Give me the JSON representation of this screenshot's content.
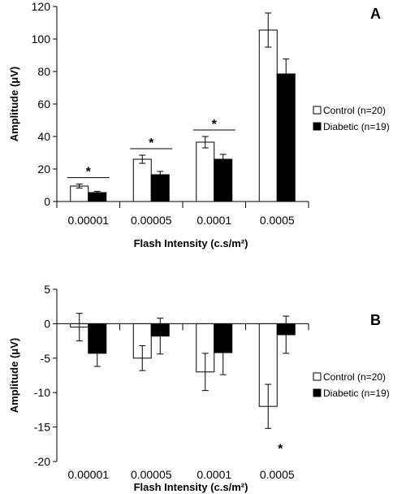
{
  "chart_data": [
    {
      "type": "bar",
      "panel_label": "A",
      "categories": [
        "0.00001",
        "0.00005",
        "0.0001",
        "0.0005"
      ],
      "series": [
        {
          "name": "Control (n=20)",
          "values": [
            9.5,
            26,
            36.5,
            105.5
          ],
          "errors": [
            1.2,
            2.5,
            3.5,
            10.5
          ],
          "color": "#ffffff"
        },
        {
          "name": "Diabetic (n=19)",
          "values": [
            5.5,
            16.5,
            26,
            78.5
          ],
          "errors": [
            0.8,
            2,
            3,
            9.2
          ],
          "color": "#000000"
        }
      ],
      "xlabel": "Flash Intensity (c.s/m²)",
      "ylabel": "Amplitude (μV)",
      "ylim": [
        0,
        120
      ],
      "yticks": [
        "0",
        "20",
        "40",
        "60",
        "80",
        "100",
        "120"
      ],
      "significance": [
        {
          "category_index": 0,
          "label": "*"
        },
        {
          "category_index": 1,
          "label": "*"
        },
        {
          "category_index": 2,
          "label": "*"
        }
      ],
      "legend": [
        "Control (n=20)",
        "Diabetic (n=19)"
      ]
    },
    {
      "type": "bar",
      "panel_label": "B",
      "categories": [
        "0.00001",
        "0.00005",
        "0.0001",
        "0.0005"
      ],
      "series": [
        {
          "name": "Control (n=20)",
          "values": [
            -0.5,
            -5,
            -7,
            -12
          ],
          "errors": [
            2,
            1.8,
            2.7,
            3.2
          ],
          "color": "#ffffff"
        },
        {
          "name": "Diabetic (n=19)",
          "values": [
            -4.3,
            -1.8,
            -4.2,
            -1.6
          ],
          "errors": [
            1.9,
            2.6,
            3.2,
            2.7
          ],
          "color": "#000000"
        }
      ],
      "xlabel": "Flash Intensity (c.s/m²)",
      "ylabel": "Amplitude (μV)",
      "ylim": [
        -20,
        5
      ],
      "yticks": [
        "5",
        "0",
        "-5",
        "-10",
        "-15",
        "-20"
      ],
      "significance": [
        {
          "category_index": 3,
          "label": "*"
        }
      ],
      "legend": [
        "Control (n=20)",
        "Diabetic (n=19)"
      ]
    }
  ]
}
